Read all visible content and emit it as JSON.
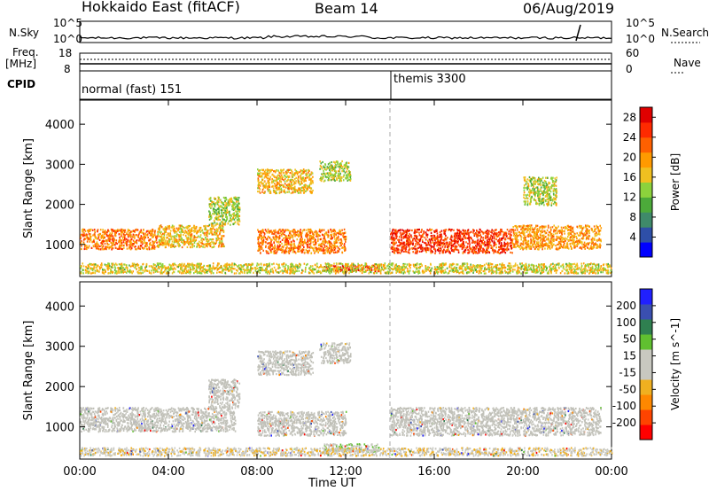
{
  "header": {
    "title": "Hokkaido East (fitACF)",
    "beam": "Beam 14",
    "date": "06/Aug/2019"
  },
  "summary_labels": {
    "nsky": "N.Sky",
    "freq_line1": "Freq.",
    "freq_line2": "[MHz]",
    "cpid": "CPID",
    "nsearch": "N.Search",
    "nave": "Nave",
    "noise_top": "10^5",
    "noise_bottom": "10^0",
    "noise_top_right": "10^5",
    "noise_bottom_right": "10^0",
    "freq_top": "18",
    "freq_bottom": "8",
    "nave_top": "60",
    "nave_bottom": "0"
  },
  "cpid": {
    "mode1": "normal (fast) 151",
    "mode2": "themis 3300"
  },
  "colors": {
    "power_scale": [
      "#0000ff",
      "#2e4fa8",
      "#3f8a6a",
      "#4caa3a",
      "#8cd23c",
      "#f0c020",
      "#ff9a00",
      "#ff6000",
      "#ff2a00",
      "#e00000"
    ],
    "velocity_scale": [
      "#2020ff",
      "#3a4fb0",
      "#2f8050",
      "#60c030",
      "#c8c8c0",
      "#c8c8c0",
      "#f0b020",
      "#ff8800",
      "#ff4400",
      "#ff0000"
    ],
    "gs_gray": "#c0c0b8"
  },
  "chart_data": [
    {
      "type": "heatmap",
      "title": "",
      "xlabel": "Time UT",
      "ylabel": "Slant Range [km]",
      "x_ticks": [
        "00:00",
        "04:00",
        "08:00",
        "12:00",
        "16:00",
        "20:00",
        "00:00"
      ],
      "y_ticks": [
        "1000",
        "2000",
        "3000",
        "4000"
      ],
      "ylim": [
        200,
        4600
      ],
      "xlim_hours": [
        0,
        24
      ],
      "colorbar": {
        "label": "Power [dB]",
        "ticks": [
          "4",
          "8",
          "12",
          "16",
          "20",
          "24",
          "28"
        ],
        "range": [
          0,
          30
        ]
      },
      "regions": [
        {
          "t0": 0.0,
          "t1": 3.5,
          "r0": 900,
          "r1": 1400,
          "level": 22
        },
        {
          "t0": 3.5,
          "t1": 6.5,
          "r0": 950,
          "r1": 1500,
          "level": 18
        },
        {
          "t0": 5.8,
          "t1": 7.2,
          "r0": 1500,
          "r1": 2200,
          "level": 14
        },
        {
          "t0": 8.0,
          "t1": 12.0,
          "r0": 800,
          "r1": 1400,
          "level": 22
        },
        {
          "t0": 8.0,
          "t1": 10.5,
          "r0": 2300,
          "r1": 2900,
          "level": 18
        },
        {
          "t0": 10.8,
          "t1": 12.2,
          "r0": 2600,
          "r1": 3100,
          "level": 14
        },
        {
          "t0": 11.0,
          "t1": 13.5,
          "r0": 350,
          "r1": 500,
          "level": 28
        },
        {
          "t0": 14.0,
          "t1": 19.5,
          "r0": 800,
          "r1": 1400,
          "level": 26
        },
        {
          "t0": 19.5,
          "t1": 23.5,
          "r0": 900,
          "r1": 1500,
          "level": 20
        },
        {
          "t0": 20.0,
          "t1": 21.5,
          "r0": 2000,
          "r1": 2700,
          "level": 14
        },
        {
          "t0": 0.0,
          "t1": 24.0,
          "r0": 300,
          "r1": 550,
          "level": 16
        }
      ]
    },
    {
      "type": "heatmap",
      "title": "",
      "xlabel": "Time UT",
      "ylabel": "Slant Range [km]",
      "x_ticks": [
        "00:00",
        "04:00",
        "08:00",
        "12:00",
        "16:00",
        "20:00",
        "00:00"
      ],
      "y_ticks": [
        "1000",
        "2000",
        "3000",
        "4000"
      ],
      "ylim": [
        200,
        4600
      ],
      "xlim_hours": [
        0,
        24
      ],
      "colorbar": {
        "label": "Velocity [m s^-1]",
        "ticks": [
          "200",
          "100",
          "50",
          "15",
          "-15",
          "-50",
          "-100",
          "-200"
        ],
        "range": [
          -250,
          250
        ]
      },
      "regions": [
        {
          "t0": 0.0,
          "t1": 7.0,
          "r0": 900,
          "r1": 1500,
          "vel": 0
        },
        {
          "t0": 5.8,
          "t1": 7.2,
          "r0": 1500,
          "r1": 2200,
          "vel": 0
        },
        {
          "t0": 8.0,
          "t1": 12.0,
          "r0": 800,
          "r1": 1400,
          "vel": 0
        },
        {
          "t0": 8.0,
          "t1": 10.5,
          "r0": 2300,
          "r1": 2900,
          "vel": 0
        },
        {
          "t0": 10.8,
          "t1": 12.2,
          "r0": 2600,
          "r1": 3100,
          "vel": 0
        },
        {
          "t0": 11.0,
          "t1": 13.5,
          "r0": 400,
          "r1": 600,
          "vel": 40
        },
        {
          "t0": 14.0,
          "t1": 23.5,
          "r0": 800,
          "r1": 1500,
          "vel": 0
        },
        {
          "t0": 0.0,
          "t1": 24.0,
          "r0": 300,
          "r1": 500,
          "vel": -40
        }
      ]
    }
  ]
}
